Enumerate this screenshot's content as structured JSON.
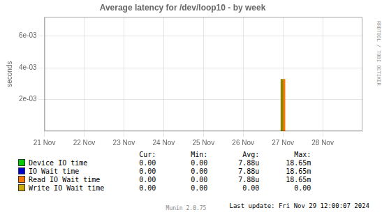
{
  "chart_data": {
    "type": "bar",
    "title": "Average latency for /dev/loop10 - by week",
    "y_label": "seconds",
    "x": [
      1732579200
    ],
    "series": [
      {
        "color": "#888800",
        "values": [
          0.00328
        ]
      },
      {
        "color": "#ff7700",
        "values": [
          0.00328
        ]
      }
    ],
    "xlim": [
      1732060800,
      1732752000
    ],
    "xticks": [
      {
        "value": 1732060800,
        "label": "21 Nov"
      },
      {
        "value": 1732147200,
        "label": "22 Nov"
      },
      {
        "value": 1732233600,
        "label": "23 Nov"
      },
      {
        "value": 1732320000,
        "label": "24 Nov"
      },
      {
        "value": 1732406400,
        "label": "25 Nov"
      },
      {
        "value": 1732492800,
        "label": "26 Nov"
      },
      {
        "value": 1732579200,
        "label": "27 Nov"
      },
      {
        "value": 1732665600,
        "label": "28 Nov"
      }
    ],
    "ylim": [
      0,
      0.0072
    ],
    "yticks": [
      {
        "value": 0.002,
        "label": "2e-03"
      },
      {
        "value": 0.004,
        "label": "4e-03"
      },
      {
        "value": 0.006,
        "label": "6e-03"
      }
    ],
    "grid": true,
    "table": {
      "headers": [
        "Cur:",
        "Min:",
        "Avg:",
        "Max:"
      ],
      "rows": [
        {
          "label": "Device IO time",
          "color": "#00cc00",
          "values": [
            "0.00",
            "0.00",
            "7.88u",
            "18.65m"
          ]
        },
        {
          "label": "IO Wait time",
          "color": "#0000cc",
          "values": [
            "0.00",
            "0.00",
            "7.88u",
            "18.65m"
          ]
        },
        {
          "label": "Read IO Wait time",
          "color": "#ff7700",
          "values": [
            "0.00",
            "0.00",
            "7.88u",
            "18.65m"
          ]
        },
        {
          "label": "Write IO Wait time",
          "color": "#ccaa00",
          "values": [
            "0.00",
            "0.00",
            "0.00",
            "0.00"
          ]
        }
      ]
    },
    "annotations": [
      "Last update: Fri Nov 29 12:00:07 2024",
      "Munin 2.0.75",
      "RRDTOOL / TOBI OETIKER"
    ]
  }
}
